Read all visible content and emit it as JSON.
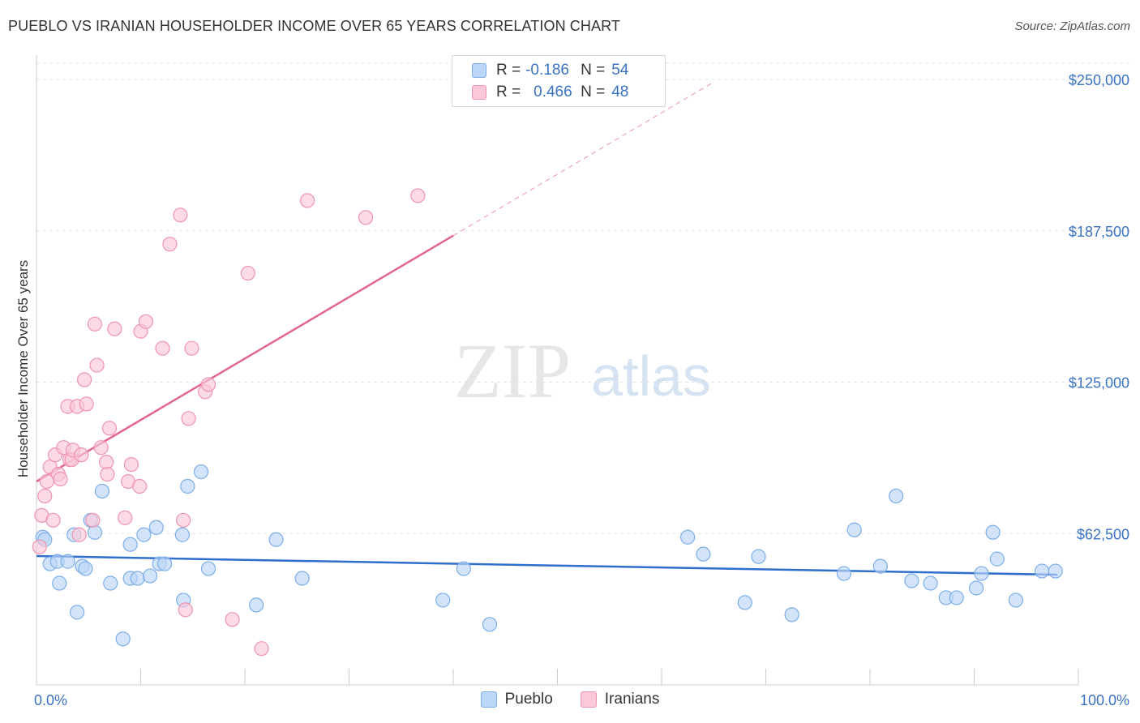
{
  "header": {
    "title": "PUEBLO VS IRANIAN HOUSEHOLDER INCOME OVER 65 YEARS CORRELATION CHART",
    "source": "Source: ZipAtlas.com"
  },
  "watermark": {
    "zip": "ZIP",
    "atlas": "atlas"
  },
  "legend": {
    "rows": [
      {
        "r_label": "R =",
        "r_value": "-0.186",
        "n_label": "N =",
        "n_value": "54",
        "color": "#7baee8",
        "fill": "#bcd6f7"
      },
      {
        "r_label": "R =",
        "r_value": "0.466",
        "n_label": "N =",
        "n_value": "48",
        "color": "#ef93b0",
        "fill": "#fac8d8"
      }
    ],
    "bottom": [
      {
        "label": "Pueblo",
        "color": "#7baee8",
        "fill": "#bcd6f7"
      },
      {
        "label": "Iranians",
        "color": "#ef93b0",
        "fill": "#fac8d8"
      }
    ]
  },
  "chart_data": {
    "type": "scatter",
    "title": "PUEBLO VS IRANIAN HOUSEHOLDER INCOME OVER 65 YEARS CORRELATION CHART",
    "xlabel": "",
    "ylabel": "Householder Income Over 65 years",
    "xlim": [
      0,
      100
    ],
    "ylim": [
      0,
      250000
    ],
    "x_tick_labels": [
      "0.0%",
      "100.0%"
    ],
    "y_ticks": [
      62500,
      125000,
      187500,
      250000
    ],
    "y_tick_labels": [
      "$62,500",
      "$125,000",
      "$187,500",
      "$250,000"
    ],
    "grid": true,
    "colors": {
      "pueblo_line": "#2f6fcc",
      "iranian_line": "#e06690",
      "pueblo_point_stroke": "#7baee8",
      "pueblo_point_fill": "#bcd6f7",
      "iranian_point_stroke": "#ef93b0",
      "iranian_point_fill": "#fac8d8"
    },
    "series": [
      {
        "name": "Pueblo",
        "points": [
          [
            0.6,
            61000
          ],
          [
            0.8,
            60000
          ],
          [
            1.3,
            50000
          ],
          [
            2.0,
            51000
          ],
          [
            2.2,
            42000
          ],
          [
            3.0,
            51000
          ],
          [
            3.6,
            62000
          ],
          [
            3.9,
            30000
          ],
          [
            4.4,
            49000
          ],
          [
            4.7,
            48000
          ],
          [
            5.2,
            68000
          ],
          [
            5.6,
            63000
          ],
          [
            6.3,
            80000
          ],
          [
            7.1,
            42000
          ],
          [
            8.3,
            19000
          ],
          [
            9.0,
            58000
          ],
          [
            9.0,
            44000
          ],
          [
            9.7,
            44000
          ],
          [
            10.3,
            62000
          ],
          [
            10.9,
            45000
          ],
          [
            11.5,
            65000
          ],
          [
            11.8,
            50000
          ],
          [
            12.3,
            50000
          ],
          [
            14.0,
            62000
          ],
          [
            14.1,
            35000
          ],
          [
            14.5,
            82000
          ],
          [
            15.8,
            88000
          ],
          [
            16.5,
            48000
          ],
          [
            21.1,
            33000
          ],
          [
            23.0,
            60000
          ],
          [
            25.5,
            44000
          ],
          [
            39.0,
            35000
          ],
          [
            41.0,
            48000
          ],
          [
            43.5,
            25000
          ],
          [
            62.5,
            61000
          ],
          [
            64.0,
            54000
          ],
          [
            68.0,
            34000
          ],
          [
            69.3,
            53000
          ],
          [
            72.5,
            29000
          ],
          [
            77.5,
            46000
          ],
          [
            78.5,
            64000
          ],
          [
            81.0,
            49000
          ],
          [
            82.5,
            78000
          ],
          [
            84.0,
            43000
          ],
          [
            85.8,
            42000
          ],
          [
            87.3,
            36000
          ],
          [
            88.3,
            36000
          ],
          [
            90.2,
            40000
          ],
          [
            90.7,
            46000
          ],
          [
            91.8,
            63000
          ],
          [
            92.2,
            52000
          ],
          [
            94.0,
            35000
          ],
          [
            96.5,
            47000
          ],
          [
            97.8,
            47000
          ]
        ]
      },
      {
        "name": "Iranians",
        "points": [
          [
            0.3,
            57000
          ],
          [
            0.5,
            70000
          ],
          [
            0.8,
            78000
          ],
          [
            1.0,
            84000
          ],
          [
            1.3,
            90000
          ],
          [
            1.6,
            68000
          ],
          [
            1.8,
            95000
          ],
          [
            2.1,
            87000
          ],
          [
            2.3,
            85000
          ],
          [
            2.6,
            98000
          ],
          [
            3.0,
            115000
          ],
          [
            3.2,
            93000
          ],
          [
            3.4,
            93000
          ],
          [
            3.5,
            97000
          ],
          [
            3.9,
            115000
          ],
          [
            4.1,
            62000
          ],
          [
            4.3,
            95000
          ],
          [
            4.6,
            126000
          ],
          [
            4.8,
            116000
          ],
          [
            5.4,
            68000
          ],
          [
            5.6,
            149000
          ],
          [
            5.8,
            132000
          ],
          [
            6.2,
            98000
          ],
          [
            6.7,
            92000
          ],
          [
            6.8,
            87000
          ],
          [
            7.0,
            106000
          ],
          [
            7.5,
            147000
          ],
          [
            8.5,
            69000
          ],
          [
            8.8,
            84000
          ],
          [
            9.1,
            91000
          ],
          [
            9.9,
            82000
          ],
          [
            10.0,
            146000
          ],
          [
            10.5,
            150000
          ],
          [
            12.1,
            139000
          ],
          [
            12.8,
            182000
          ],
          [
            13.8,
            194000
          ],
          [
            14.1,
            68000
          ],
          [
            14.3,
            31000
          ],
          [
            14.6,
            110000
          ],
          [
            14.9,
            139000
          ],
          [
            16.2,
            121000
          ],
          [
            16.5,
            124000
          ],
          [
            18.8,
            27000
          ],
          [
            20.3,
            170000
          ],
          [
            21.6,
            15000
          ],
          [
            26.0,
            200000
          ],
          [
            31.6,
            193000
          ],
          [
            36.6,
            202000
          ]
        ]
      }
    ],
    "trendlines": [
      {
        "name": "Pueblo",
        "x": [
          0,
          98
        ],
        "y": [
          53200,
          45500
        ]
      },
      {
        "name": "Iranians",
        "x": [
          0,
          40
        ],
        "y": [
          84000,
          185500
        ],
        "dashed_extension_to_x": 65
      }
    ]
  }
}
